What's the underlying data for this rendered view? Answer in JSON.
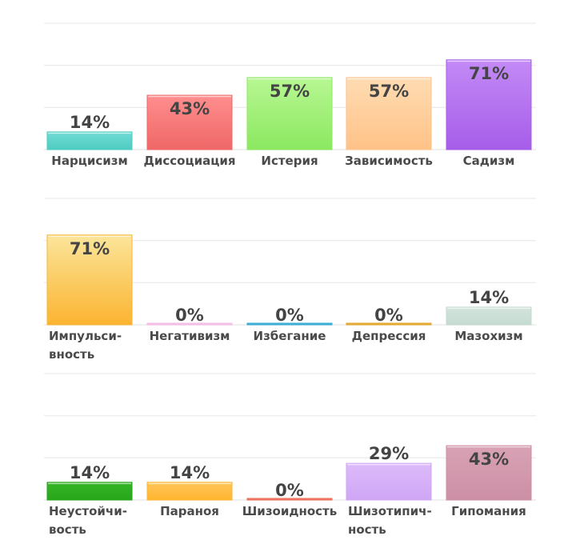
{
  "chart_data": [
    {
      "type": "bar",
      "ylim": [
        0,
        100
      ],
      "grid": true,
      "categories": [
        "Нарцисизм",
        "Диссоциация",
        "Истерия",
        "Зависимость",
        "Садизм"
      ],
      "labels": [
        [
          "Нарцисизм"
        ],
        [
          "Диссоциация"
        ],
        [
          "Истерия"
        ],
        [
          "Зависимость"
        ],
        [
          "Садизм"
        ]
      ],
      "values": [
        14,
        43,
        57,
        57,
        71
      ],
      "value_labels": [
        "14%",
        "43%",
        "57%",
        "57%",
        "71%"
      ],
      "colors": [
        [
          "#71dcd4",
          "#4ecbc1"
        ],
        [
          "#ff8e8e",
          "#ef6767"
        ],
        [
          "#b8f793",
          "#8be860"
        ],
        [
          "#ffdcb3",
          "#ffc287"
        ],
        [
          "#c38af6",
          "#a65de9"
        ]
      ]
    },
    {
      "type": "bar",
      "ylim": [
        0,
        100
      ],
      "grid": true,
      "categories": [
        "Импульсивность",
        "Негативизм",
        "Избегание",
        "Депрессия",
        "Мазохизм"
      ],
      "labels": [
        [
          "Импульси-",
          "вность"
        ],
        [
          "Негативизм"
        ],
        [
          "Избегание"
        ],
        [
          "Депрессия"
        ],
        [
          "Мазохизм"
        ]
      ],
      "values": [
        71,
        0,
        0,
        0,
        14
      ],
      "value_labels": [
        "71%",
        "0%",
        "0%",
        "0%",
        "14%"
      ],
      "colors": [
        [
          "#fbe59a",
          "#fbb431"
        ],
        [
          "#f7d3ee",
          "#f2b8e2"
        ],
        [
          "#63c2e0",
          "#2ea8d4"
        ],
        [
          "#f2c063",
          "#e0a222"
        ],
        [
          "#d3e4dc",
          "#c5dbd1"
        ]
      ]
    },
    {
      "type": "bar",
      "ylim": [
        0,
        100
      ],
      "grid": true,
      "categories": [
        "Неустойчивость",
        "Параноя",
        "Шизоидность",
        "Шизотипичность",
        "Гипомания"
      ],
      "labels": [
        [
          "Неустойчи-",
          "вость"
        ],
        [
          "Параноя"
        ],
        [
          "Шизоидность"
        ],
        [
          "Шизотипич-",
          "ность"
        ],
        [
          "Гипомания"
        ]
      ],
      "values": [
        14,
        14,
        0,
        29,
        43
      ],
      "value_labels": [
        "14%",
        "14%",
        "0%",
        "29%",
        "43%"
      ],
      "colors": [
        [
          "#35b526",
          "#27a61a"
        ],
        [
          "#ffc65a",
          "#ffb52f"
        ],
        [
          "#f5907e",
          "#e96a55"
        ],
        [
          "#dcbaf9",
          "#cfa6f6"
        ],
        [
          "#d9a2b5",
          "#cc8fa5"
        ]
      ]
    }
  ]
}
